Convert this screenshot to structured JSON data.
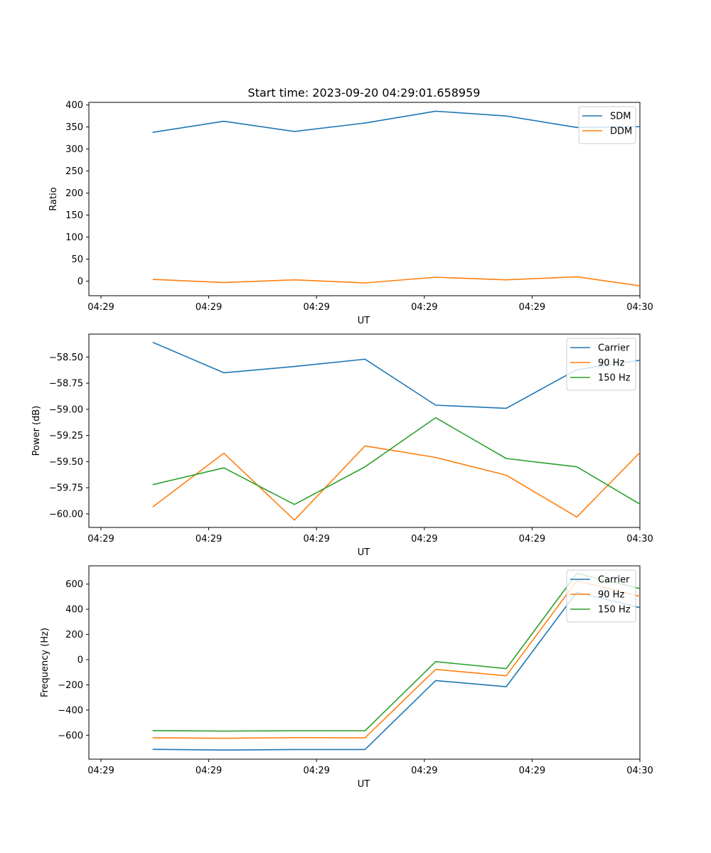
{
  "figure": {
    "title": "Start time: 2023-09-20 04:29:01.658959"
  },
  "chart_data": [
    {
      "type": "line",
      "title": "Start time: 2023-09-20 04:29:01.658959",
      "xlabel": "UT",
      "ylabel": "Ratio",
      "xlim": [
        0,
        10
      ],
      "x_ticks": [
        0,
        2,
        4,
        6,
        8,
        10
      ],
      "x_tick_labels": [
        "04:29",
        "04:29",
        "04:29",
        "04:29",
        "04:29",
        "04:30"
      ],
      "ylim": [
        -33,
        406
      ],
      "y_ticks": [
        0,
        50,
        100,
        150,
        200,
        250,
        300,
        350,
        400
      ],
      "y_tick_labels": [
        "0",
        "50",
        "100",
        "150",
        "200",
        "250",
        "300",
        "350",
        "400"
      ],
      "legend": "top-right",
      "x": [
        0.97,
        2.28,
        3.59,
        4.9,
        6.21,
        7.52,
        8.83,
        10.14
      ],
      "series": [
        {
          "name": "SDM",
          "color": "#1f77b4",
          "values": [
            338,
            363,
            340,
            359,
            386,
            375,
            349,
            351
          ]
        },
        {
          "name": "DDM",
          "color": "#ff7f0e",
          "values": [
            4,
            -3,
            3,
            -4,
            9,
            3,
            10,
            -13
          ]
        }
      ]
    },
    {
      "type": "line",
      "xlabel": "UT",
      "ylabel": "Power (dB)",
      "xlim": [
        0,
        10
      ],
      "x_ticks": [
        0,
        2,
        4,
        6,
        8,
        10
      ],
      "x_tick_labels": [
        "04:29",
        "04:29",
        "04:29",
        "04:29",
        "04:29",
        "04:30"
      ],
      "ylim": [
        -60.13,
        -58.28
      ],
      "y_ticks": [
        -60.0,
        -59.75,
        -59.5,
        -59.25,
        -59.0,
        -58.75,
        -58.5
      ],
      "y_tick_labels": [
        "−60.00",
        "−59.75",
        "−59.50",
        "−59.25",
        "−59.00",
        "−58.75",
        "−58.50"
      ],
      "legend": "top-right",
      "x": [
        0.97,
        2.28,
        3.59,
        4.9,
        6.21,
        7.52,
        8.83,
        10.14
      ],
      "series": [
        {
          "name": "Carrier",
          "color": "#1f77b4",
          "values": [
            -58.36,
            -58.65,
            -58.59,
            -58.52,
            -58.96,
            -58.99,
            -58.62,
            -58.52
          ]
        },
        {
          "name": "90 Hz",
          "color": "#ff7f0e",
          "values": [
            -59.93,
            -59.42,
            -60.06,
            -59.35,
            -59.46,
            -59.63,
            -60.03,
            -59.34
          ]
        },
        {
          "name": "150 Hz",
          "color": "#2ca02c",
          "values": [
            -59.72,
            -59.56,
            -59.91,
            -59.55,
            -59.08,
            -59.47,
            -59.55,
            -59.95
          ]
        }
      ]
    },
    {
      "type": "line",
      "xlabel": "UT",
      "ylabel": "Frequency (Hz)",
      "xlim": [
        0,
        10
      ],
      "x_ticks": [
        0,
        2,
        4,
        6,
        8,
        10
      ],
      "x_tick_labels": [
        "04:29",
        "04:29",
        "04:29",
        "04:29",
        "04:29",
        "04:30"
      ],
      "ylim": [
        -790,
        745
      ],
      "y_ticks": [
        -600,
        -400,
        -200,
        0,
        200,
        400,
        600
      ],
      "y_tick_labels": [
        "−600",
        "−400",
        "−200",
        "0",
        "200",
        "400",
        "600"
      ],
      "legend": "top-right",
      "x": [
        0.97,
        2.28,
        3.59,
        4.9,
        6.21,
        7.52,
        8.83,
        10.14
      ],
      "series": [
        {
          "name": "Carrier",
          "color": "#1f77b4",
          "values": [
            -712,
            -718,
            -713,
            -713,
            -166,
            -215,
            536,
            398
          ]
        },
        {
          "name": "90 Hz",
          "color": "#ff7f0e",
          "values": [
            -620,
            -624,
            -619,
            -620,
            -77,
            -128,
            626,
            488
          ]
        },
        {
          "name": "150 Hz",
          "color": "#2ca02c",
          "values": [
            -563,
            -567,
            -564,
            -564,
            -16,
            -71,
            685,
            550
          ]
        }
      ]
    }
  ]
}
